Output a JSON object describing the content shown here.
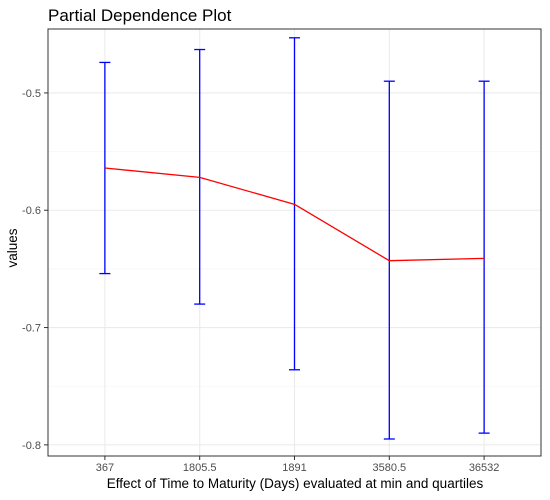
{
  "chart_data": {
    "type": "line",
    "title": "Partial Dependence Plot",
    "xlabel": "Effect of Time to Maturity (Days) evaluated at min and quartiles",
    "ylabel": "values",
    "categories": [
      "367",
      "1805.5",
      "1891",
      "3580.5",
      "36532"
    ],
    "series": [
      {
        "values": [
          -0.564,
          -0.572,
          -0.595,
          -0.643,
          -0.641
        ],
        "lower": [
          -0.654,
          -0.68,
          -0.736,
          -0.795,
          -0.79
        ],
        "upper": [
          -0.474,
          -0.463,
          -0.453,
          -0.49,
          -0.49
        ]
      }
    ],
    "ylim": [
      -0.8095,
      -0.4455
    ],
    "yticks": [
      -0.5,
      -0.6,
      -0.7,
      -0.8
    ],
    "grid": true,
    "legend": "none",
    "colors": {
      "line": "#ff0000",
      "errorbar": "#0000ff",
      "grid_major": "#ebebeb",
      "grid_minor": "#f5f5f5",
      "panel_border": "#333333",
      "tick_label": "#4d4d4d"
    }
  }
}
